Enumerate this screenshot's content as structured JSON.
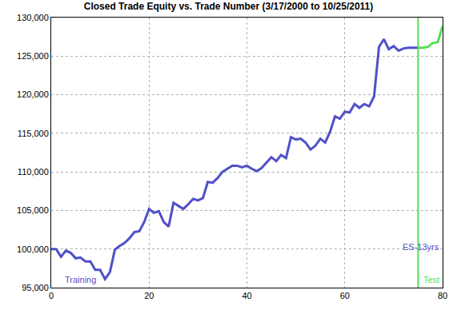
{
  "chart_data": {
    "type": "line",
    "title": "Closed Trade Equity vs. Trade Number (3/17/2000 to 10/25/2011)",
    "series": [
      {
        "name": "Training",
        "color": "#5050c8",
        "x": [
          0,
          1,
          2,
          3,
          4,
          5,
          6,
          7,
          8,
          9,
          10,
          11,
          12,
          13,
          14,
          15,
          16,
          17,
          18,
          19,
          20,
          21,
          22,
          23,
          24,
          25,
          26,
          27,
          28,
          29,
          30,
          31,
          32,
          33,
          34,
          35,
          36,
          37,
          38,
          39,
          40,
          41,
          42,
          43,
          44,
          45,
          46,
          47,
          48,
          49,
          50,
          51,
          52,
          53,
          54,
          55,
          56,
          57,
          58,
          59,
          60,
          61,
          62,
          63,
          64,
          65,
          66,
          67,
          68,
          69,
          70,
          71,
          72,
          73,
          74,
          75
        ],
        "values": [
          100000,
          100000,
          99000,
          99800,
          99500,
          98800,
          98900,
          98400,
          98400,
          97300,
          97300,
          96100,
          97000,
          99900,
          100400,
          100800,
          101400,
          102200,
          102300,
          103500,
          105200,
          104700,
          104900,
          103500,
          102900,
          106000,
          105600,
          105200,
          105800,
          106500,
          106300,
          106600,
          108700,
          108600,
          109200,
          110000,
          110400,
          110800,
          110800,
          110600,
          110800,
          110400,
          110100,
          110500,
          111200,
          111900,
          111400,
          112200,
          111800,
          114500,
          114200,
          114300,
          113800,
          112900,
          113400,
          114300,
          113800,
          115200,
          117200,
          116900,
          117800,
          117700,
          118800,
          118300,
          118800,
          118500,
          119800,
          126200,
          127200,
          125900,
          126300,
          125700,
          126000,
          126100,
          126100,
          126100
        ]
      },
      {
        "name": "Test",
        "color": "#55dd55",
        "x": [
          75,
          76,
          77,
          78,
          79,
          80
        ],
        "values": [
          126100,
          126100,
          126200,
          126700,
          126800,
          128900
        ]
      }
    ],
    "annotations": [
      "ES-13yrs"
    ],
    "xlim": [
      0,
      80
    ],
    "xticks": [
      0,
      20,
      40,
      60,
      80
    ],
    "ylim": [
      95000,
      130000
    ],
    "yticks": [
      {
        "value": 95000,
        "label": "95,000"
      },
      {
        "value": 100000,
        "label": "100,000"
      },
      {
        "value": 105000,
        "label": "105,000"
      },
      {
        "value": 110000,
        "label": "110,000"
      },
      {
        "value": 115000,
        "label": "115,000"
      },
      {
        "value": 120000,
        "label": "120,000"
      },
      {
        "value": 125000,
        "label": "125,000"
      },
      {
        "value": 130000,
        "label": "130,000"
      }
    ],
    "grid": true
  }
}
